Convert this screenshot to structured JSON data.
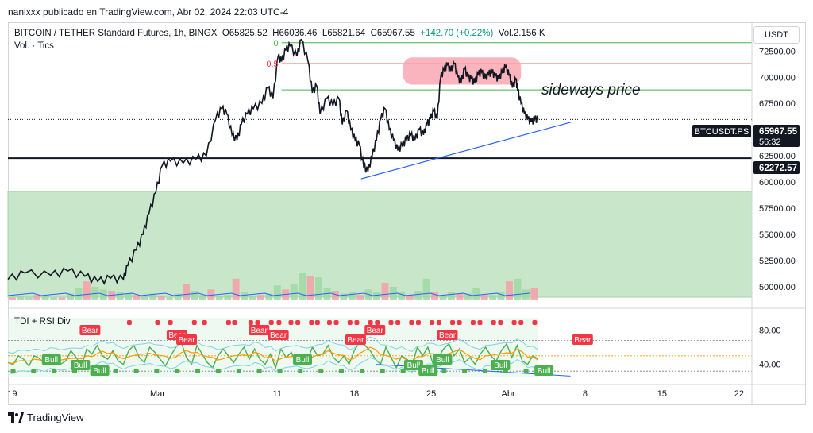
{
  "header": {
    "text": "nanixxx publicado en TradingView.com, Abr 02, 2024 22:03 UTC-4"
  },
  "legend": {
    "symbol": "BITCOIN / TETHER Standard Futures, 1h, BINGX",
    "open": "O65825.52",
    "high": "H66036.46",
    "low": "L65821.64",
    "close": "C65967.55",
    "change": "+142.70 (+0.22%)",
    "volume": "Vol.2.156 K",
    "volume_label": "Vol. · Tics"
  },
  "currency_button": "USDT",
  "indicator": {
    "name": "TDI + RSI Div"
  },
  "annotation": {
    "text": "sideways price"
  },
  "price_tag": {
    "ticker": "BTCUSDT.PS",
    "price": "65967.55",
    "countdown": "56:32"
  },
  "level_tag": {
    "price": "62272.57"
  },
  "footer": {
    "brand": "TradingView"
  },
  "colors": {
    "candle": "#131722",
    "support_zone": "#c8e6c9",
    "fib_0": "#4caf50",
    "fib_05": "#f23645",
    "fib_low": "#4caf50",
    "trendline": "#2962ff",
    "highlight": "#f7a1ad",
    "bull": "#4caf50",
    "bear": "#f23645"
  },
  "chart_data": [
    {
      "type": "line",
      "role": "price",
      "y_ticks": [
        "72500.00",
        "70000.00",
        "67500.00",
        "65000.00",
        "62500.00",
        "60000.00",
        "57500.00",
        "55000.00",
        "52500.00",
        "50000.00"
      ],
      "y_tick_values": [
        72500,
        70000,
        67500,
        65000,
        62500,
        60000,
        57500,
        55000,
        52500,
        50000
      ],
      "x_ticks": [
        "19",
        "Mar",
        "11",
        "18",
        "25",
        "Abr",
        "8",
        "15",
        "22"
      ],
      "price_path": [
        [
          0,
          50700
        ],
        [
          2,
          51300
        ],
        [
          5,
          51100
        ],
        [
          7,
          51500
        ],
        [
          9,
          51000
        ],
        [
          10.5,
          50500
        ],
        [
          12,
          50800
        ],
        [
          13.5,
          50700
        ],
        [
          14,
          52000
        ],
        [
          15,
          53500
        ],
        [
          15.8,
          55000
        ],
        [
          16.5,
          57000
        ],
        [
          17.3,
          59000
        ],
        [
          18,
          61500
        ],
        [
          19,
          62000
        ],
        [
          20.5,
          61800
        ],
        [
          22,
          62200
        ],
        [
          23.2,
          62500
        ],
        [
          24.3,
          66000
        ],
        [
          25,
          67000
        ],
        [
          25.6,
          66500
        ],
        [
          26.2,
          64500
        ],
        [
          26.8,
          64000
        ],
        [
          27.3,
          65500
        ],
        [
          28,
          66500
        ],
        [
          28.7,
          67000
        ],
        [
          29.7,
          67500
        ],
        [
          30.4,
          69000
        ],
        [
          31,
          68000
        ],
        [
          31.6,
          72000
        ],
        [
          32,
          71500
        ],
        [
          32.5,
          72600
        ],
        [
          33,
          73000
        ],
        [
          33.8,
          72000
        ],
        [
          34.3,
          73600
        ],
        [
          35.1,
          71500
        ],
        [
          35.6,
          68500
        ],
        [
          36.1,
          69200
        ],
        [
          36.5,
          66500
        ],
        [
          37.3,
          68000
        ],
        [
          38,
          67300
        ],
        [
          38.7,
          68000
        ],
        [
          39.1,
          65500
        ],
        [
          39.6,
          66800
        ],
        [
          40.1,
          65000
        ],
        [
          40.6,
          64000
        ],
        [
          41.1,
          63500
        ],
        [
          41.6,
          61500
        ],
        [
          42.1,
          61000
        ],
        [
          42.6,
          62500
        ],
        [
          43.1,
          64000
        ],
        [
          43.6,
          66000
        ],
        [
          44.1,
          67000
        ],
        [
          44.6,
          65000
        ],
        [
          45.1,
          64000
        ],
        [
          45.6,
          63000
        ],
        [
          46.1,
          63500
        ],
        [
          46.6,
          64000
        ],
        [
          47.1,
          64500
        ],
        [
          47.6,
          64000
        ],
        [
          48.1,
          65000
        ],
        [
          48.6,
          64500
        ],
        [
          49,
          65500
        ],
        [
          49.4,
          66000
        ],
        [
          49.8,
          66800
        ],
        [
          50.2,
          66000
        ],
        [
          50.6,
          70000
        ],
        [
          51,
          70700
        ],
        [
          51.4,
          71200
        ],
        [
          51.8,
          70600
        ],
        [
          52.2,
          71300
        ],
        [
          52.6,
          70000
        ],
        [
          53,
          69500
        ],
        [
          53.4,
          70800
        ],
        [
          53.8,
          70000
        ],
        [
          54.2,
          69800
        ],
        [
          54.6,
          69500
        ],
        [
          55,
          70300
        ],
        [
          55.4,
          70500
        ],
        [
          55.8,
          69900
        ],
        [
          56.2,
          70300
        ],
        [
          56.6,
          70500
        ],
        [
          57,
          70100
        ],
        [
          57.4,
          69800
        ],
        [
          57.8,
          70500
        ],
        [
          58.2,
          71000
        ],
        [
          58.6,
          70200
        ],
        [
          59,
          69000
        ],
        [
          59.4,
          69800
        ],
        [
          59.6,
          68800
        ],
        [
          60,
          67500
        ],
        [
          60.4,
          66500
        ],
        [
          60.8,
          66000
        ],
        [
          61.2,
          65700
        ],
        [
          61.6,
          66000
        ],
        [
          62,
          65967
        ]
      ],
      "fib_levels": [
        {
          "label": "0",
          "value": 73300
        },
        {
          "label": "0.5",
          "value": 71300
        },
        {
          "label": "",
          "value": 68800
        }
      ],
      "horizontal_level": 62272.57,
      "support_zone": [
        49000,
        59100
      ],
      "current_price": 65967.55,
      "trendline": [
        [
          41.3,
          60300
        ],
        [
          65.8,
          65700
        ]
      ],
      "highlight_range": {
        "x": [
          46.2,
          60
        ],
        "y": [
          69300,
          71900
        ]
      },
      "xlim": [
        0,
        87
      ],
      "ylim": [
        48700,
        74800
      ],
      "grid": false
    },
    {
      "type": "line",
      "role": "volume",
      "values": [
        2,
        3,
        2,
        4,
        3,
        2,
        2,
        5,
        9,
        14,
        10,
        8,
        7,
        6,
        5,
        4,
        3,
        5,
        3,
        2,
        5,
        12,
        7,
        4,
        8,
        3,
        4,
        16,
        6,
        3,
        4,
        5,
        11,
        8,
        12,
        20,
        18,
        17,
        9,
        7,
        5,
        6,
        4,
        8,
        6,
        13,
        10,
        6,
        4,
        7,
        16,
        6,
        3,
        6,
        5,
        5,
        9,
        4,
        4,
        6,
        14,
        16,
        8,
        9
      ],
      "grid": false
    },
    {
      "type": "line",
      "role": "oscillator",
      "y_ticks": [
        "80.00",
        "40.00"
      ],
      "y_tick_values": [
        80,
        40
      ],
      "levels": [
        68,
        50,
        32
      ],
      "rsi": [
        42,
        40,
        50,
        46,
        38,
        50,
        47,
        40,
        52,
        48,
        40,
        44,
        56,
        48,
        38,
        58,
        52,
        62,
        50,
        46,
        56,
        44,
        40,
        56,
        62,
        48,
        42,
        60,
        54,
        46,
        38,
        50,
        60,
        66,
        48,
        40,
        62,
        52,
        42,
        36,
        50,
        58,
        50,
        42,
        52,
        60,
        46,
        58,
        46,
        40,
        52,
        36,
        58,
        48,
        54,
        40,
        50,
        44,
        60,
        50,
        52,
        62,
        48,
        42,
        50,
        40,
        56,
        66,
        62,
        56,
        46,
        40,
        60,
        48,
        36,
        50,
        46,
        40,
        60,
        50,
        60,
        40,
        48,
        58,
        64,
        50,
        58,
        42,
        48,
        40,
        52,
        60,
        50,
        44,
        56,
        64,
        48,
        62,
        44,
        40,
        50,
        46
      ],
      "bear_labels": [
        {
          "text": "Bear",
          "x": 17
        },
        {
          "text": "Bear",
          "x": 35
        },
        {
          "text": "Bear",
          "x": 37
        },
        {
          "text": "Bear",
          "x": 52
        },
        {
          "text": "Bear",
          "x": 56
        },
        {
          "text": "Bear",
          "x": 72
        },
        {
          "text": "Bear",
          "x": 76
        },
        {
          "text": "Bear",
          "x": 91
        },
        {
          "text": "Bear",
          "x": 119
        }
      ],
      "bull_labels": [
        {
          "text": "Bull",
          "x": 9
        },
        {
          "text": "Bull",
          "x": 15
        },
        {
          "text": "Bull",
          "x": 19
        },
        {
          "text": "Bull",
          "x": 61
        },
        {
          "text": "Bull",
          "x": 84
        },
        {
          "text": "Bull",
          "x": 87
        },
        {
          "text": "Bull",
          "x": 90
        },
        {
          "text": "Bull",
          "x": 102
        },
        {
          "text": "Bull",
          "x": 111
        }
      ],
      "bear_dots_x": [
        14.2,
        16,
        17.5,
        19,
        20.4,
        21.8,
        23,
        24.2,
        25.8,
        26.5,
        27.2,
        28.4,
        29.2,
        30,
        30.8,
        31.7,
        32.4,
        33.1,
        33.9,
        34.7,
        35.5,
        36.2,
        37,
        37.6,
        38.4,
        39.2,
        40,
        40.8,
        41.6,
        42.4,
        43.2,
        44,
        44.8,
        45.6,
        46.4,
        47.2,
        48,
        48.8,
        49.6,
        50.4,
        51.2,
        52,
        52.8,
        53.6,
        54.4,
        55.2,
        56,
        56.8,
        57.6,
        58.4,
        59.2,
        60,
        60.8,
        61.6
      ],
      "bull_dots_x": [
        0.6,
        1.8,
        3,
        4.2,
        5.4,
        6.6,
        7.8,
        9,
        10.2,
        11.4,
        12.6,
        13.8,
        15,
        16.2,
        17.4,
        18.6,
        19.8,
        21,
        22.2,
        23.4,
        24.6,
        25.8,
        27,
        28.2,
        29.4,
        30.6,
        31.8,
        33,
        34.2,
        35.4,
        36.6,
        37.8,
        39,
        40.2,
        41.4,
        42.6,
        43.8,
        45,
        46.2,
        47.4,
        48.6,
        49.8,
        51,
        52.2,
        53.4,
        54.6,
        55.8,
        57,
        58.2,
        59.4,
        60.6,
        61.8
      ],
      "divergence_line": [
        [
          43,
          40
        ],
        [
          63,
          30
        ]
      ],
      "ylim": [
        22,
        98
      ],
      "grid": false
    }
  ]
}
